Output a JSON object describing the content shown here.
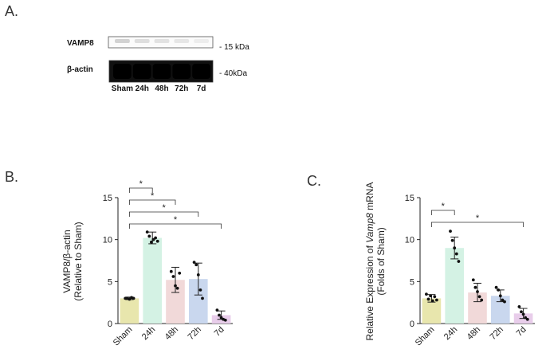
{
  "panel_labels": {
    "a": "A.",
    "b": "B.",
    "c": "C."
  },
  "blot": {
    "rows": [
      {
        "name": "VAMP8",
        "marker": "- 15 kDa",
        "intensity": "faint"
      },
      {
        "name": "β-actin",
        "marker": "- 40kDa",
        "intensity": "strong"
      }
    ],
    "lanes": [
      "Sham",
      "24h",
      "48h",
      "72h",
      "7d"
    ]
  },
  "chart_data": [
    {
      "type": "bar",
      "panel": "B.",
      "categories": [
        "Sham",
        "24h",
        "48h",
        "72h",
        "7d"
      ],
      "values": [
        3.0,
        10.2,
        5.2,
        5.3,
        1.0
      ],
      "errors": [
        0.15,
        0.7,
        1.5,
        1.9,
        0.5
      ],
      "points": [
        [
          3.0,
          3.0,
          2.9,
          3.1,
          3.0
        ],
        [
          10.9,
          10.4,
          9.7,
          10.0,
          10.2,
          9.8
        ],
        [
          6.2,
          5.6,
          4.5,
          4.2,
          6.0
        ],
        [
          7.3,
          7.0,
          5.8,
          4.0,
          3.0
        ],
        [
          1.6,
          1.0,
          0.7,
          0.5,
          0.4
        ]
      ],
      "colors": [
        "#e8e6ad",
        "#d4f2e4",
        "#f1d9d9",
        "#c9d7ee",
        "#e8cdea"
      ],
      "ylabel_lines": [
        "VAMP8/β-actin",
        "(Relative to Sham)"
      ],
      "ylim": [
        0,
        15
      ],
      "yticks": [
        0,
        5,
        10,
        15
      ],
      "significance": [
        {
          "from": 0,
          "to": 1,
          "label": "*"
        },
        {
          "from": 0,
          "to": 2,
          "label": "*"
        },
        {
          "from": 0,
          "to": 3,
          "label": "*"
        },
        {
          "from": 0,
          "to": 4,
          "label": "*"
        }
      ]
    },
    {
      "type": "bar",
      "panel": "C.",
      "categories": [
        "Sham",
        "24h",
        "48h",
        "72h",
        "7d"
      ],
      "values": [
        3.0,
        9.0,
        3.7,
        3.3,
        1.2
      ],
      "errors": [
        0.45,
        1.3,
        1.1,
        0.7,
        0.6
      ],
      "points": [
        [
          3.5,
          2.9,
          3.3,
          2.7,
          3.2,
          2.8
        ],
        [
          11.0,
          9.9,
          9.0,
          8.3,
          7.4
        ],
        [
          5.2,
          4.3,
          3.8,
          3.2,
          2.8
        ],
        [
          4.3,
          4.0,
          3.3,
          2.8,
          2.6
        ],
        [
          2.0,
          1.4,
          1.1,
          0.7,
          0.5
        ]
      ],
      "colors": [
        "#e8e6ad",
        "#d4f2e4",
        "#f1d9d9",
        "#c9d7ee",
        "#e8cdea"
      ],
      "ylabel_lines": [
        "Relative Expression of Vamp8 mRNA",
        "(Folds of Sham)"
      ],
      "ylim": [
        0,
        15
      ],
      "yticks": [
        0,
        5,
        10,
        15
      ],
      "significance": [
        {
          "from": 0,
          "to": 1,
          "label": "*"
        },
        {
          "from": 0,
          "to": 4,
          "label": "*"
        }
      ]
    }
  ]
}
